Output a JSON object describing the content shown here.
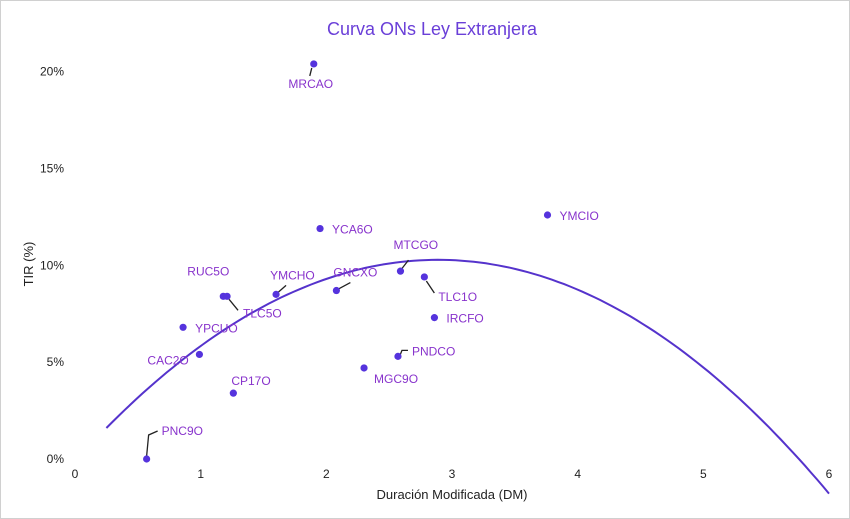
{
  "chart_data": {
    "type": "scatter",
    "title": "Curva ONs Ley Extranjera",
    "xlabel": "Duración Modificada (DM)",
    "ylabel": "TIR (%)",
    "xlim": [
      0,
      6
    ],
    "ylim": [
      0,
      0.205
    ],
    "x_ticks": [
      0,
      1,
      2,
      3,
      4,
      5,
      6
    ],
    "x_tick_labels": [
      "0",
      "1",
      "2",
      "3",
      "4",
      "5",
      "6"
    ],
    "y_ticks": [
      0,
      0.05,
      0.1,
      0.15,
      0.2
    ],
    "y_tick_labels": [
      "0%",
      "5%",
      "10%",
      "15%",
      "20%"
    ],
    "grid": false,
    "points": [
      {
        "label": "MRCAO",
        "x": 1.9,
        "y": 0.204
      },
      {
        "label": "YMCIO",
        "x": 3.76,
        "y": 0.126
      },
      {
        "label": "YCA6O",
        "x": 1.95,
        "y": 0.119
      },
      {
        "label": "MTCGO",
        "x": 2.59,
        "y": 0.097
      },
      {
        "label": "TLC1O",
        "x": 2.78,
        "y": 0.094
      },
      {
        "label": "GNCXO",
        "x": 2.08,
        "y": 0.087
      },
      {
        "label": "YMCHO",
        "x": 1.6,
        "y": 0.085
      },
      {
        "label": "RUC5O",
        "x": 1.18,
        "y": 0.084
      },
      {
        "label": "TLC5O",
        "x": 1.21,
        "y": 0.084
      },
      {
        "label": "IRCFO",
        "x": 2.86,
        "y": 0.073
      },
      {
        "label": "YPCUO",
        "x": 0.86,
        "y": 0.068
      },
      {
        "label": "CAC2O",
        "x": 0.99,
        "y": 0.054
      },
      {
        "label": "PNDCO",
        "x": 2.57,
        "y": 0.053
      },
      {
        "label": "MGC9O",
        "x": 2.3,
        "y": 0.047
      },
      {
        "label": "CP17O",
        "x": 1.26,
        "y": 0.034
      },
      {
        "label": "PNC9O",
        "x": 0.57,
        "y": 0.0
      }
    ],
    "trendline": {
      "type": "polynomial-2",
      "x_range": [
        0.25,
        6.0
      ]
    },
    "colors": {
      "point": "#5533dd",
      "label": "#8833cc",
      "trendline": "#5533cc",
      "title": "#6a3fd8"
    }
  }
}
